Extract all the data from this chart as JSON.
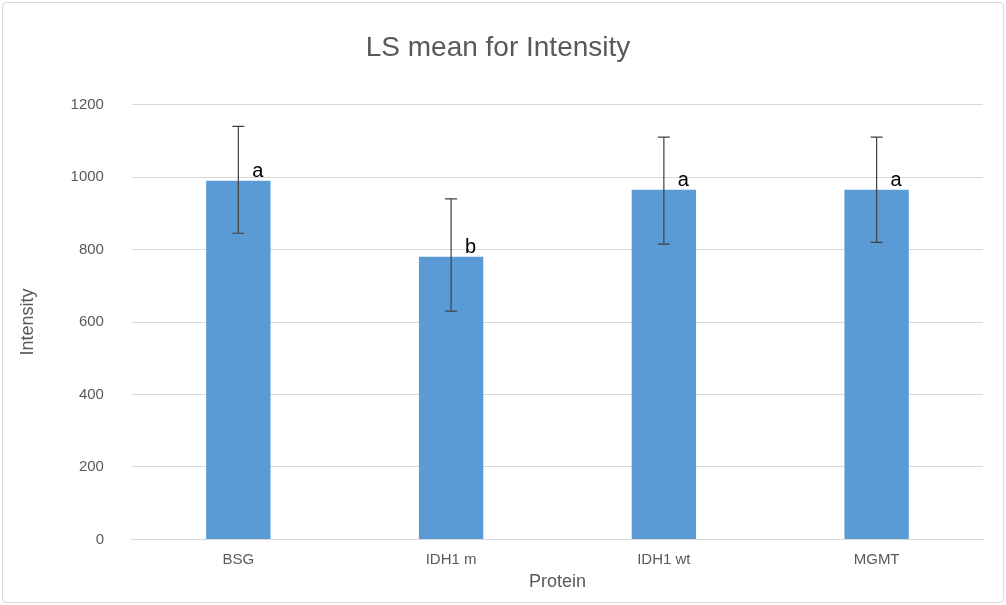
{
  "chart_data": {
    "type": "bar",
    "title": "LS mean for Intensity",
    "xlabel": "Protein",
    "ylabel": "Intensity",
    "categories": [
      "BSG",
      "IDH1 m",
      "IDH1 wt",
      "MGMT"
    ],
    "values": [
      990,
      780,
      965,
      965
    ],
    "errors": [
      [
        845,
        1140
      ],
      [
        630,
        940
      ],
      [
        815,
        1110
      ],
      [
        820,
        1110
      ]
    ],
    "color": "#5b9bd5",
    "ylim": [
      0,
      1200
    ],
    "yticks": [
      0,
      200,
      400,
      600,
      800,
      1000,
      1200
    ],
    "grid": "y",
    "legend": false,
    "annotations": [
      {
        "text": "a",
        "x": "BSG",
        "y": 990
      },
      {
        "text": "b",
        "x": "IDH1 m",
        "y": 780
      },
      {
        "text": "a",
        "x": "IDH1 wt",
        "y": 965
      },
      {
        "text": "a",
        "x": "MGMT",
        "y": 965
      }
    ]
  }
}
